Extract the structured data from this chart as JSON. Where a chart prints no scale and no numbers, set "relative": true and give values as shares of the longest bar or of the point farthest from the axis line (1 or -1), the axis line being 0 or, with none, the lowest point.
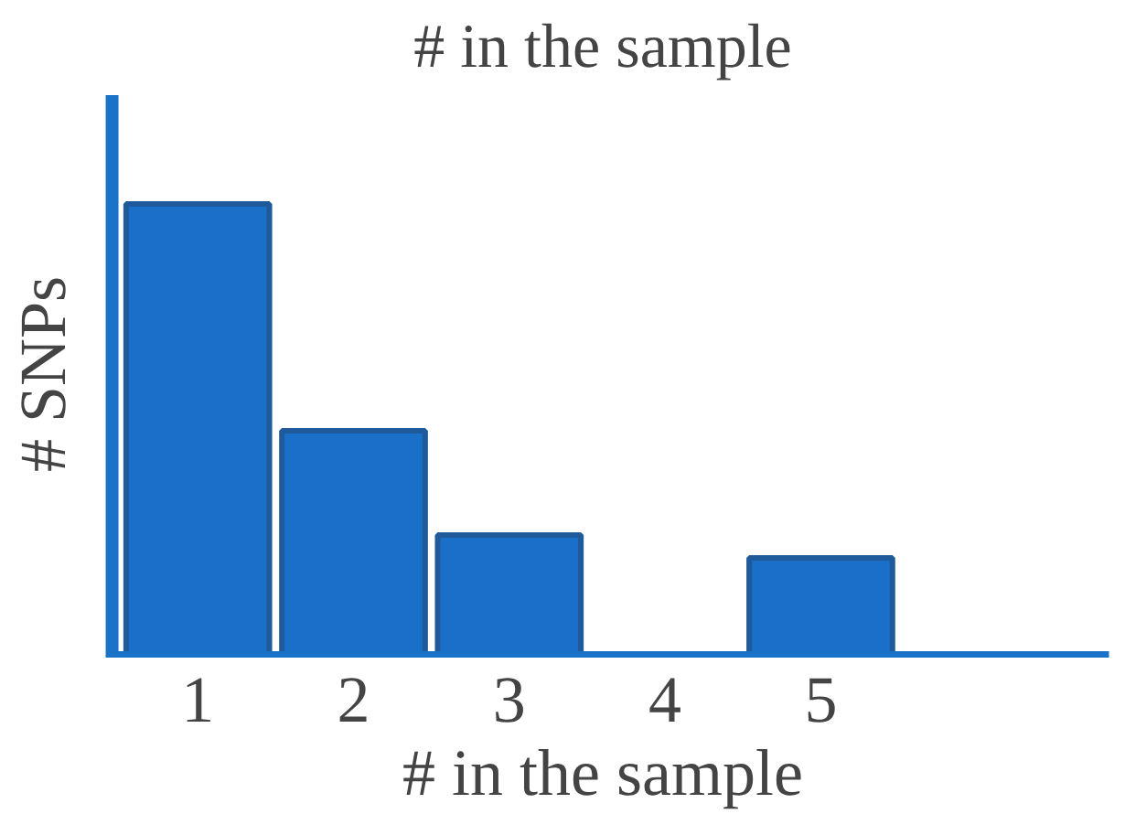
{
  "chart_data": {
    "type": "bar",
    "title": "# in the sample",
    "xlabel": "# in the sample",
    "ylabel": "# SNPs",
    "categories": [
      "1",
      "2",
      "3",
      "4",
      "5"
    ],
    "values": [
      1,
      0.5,
      0.27,
      0,
      0.22
    ],
    "color": "#1a6fc9",
    "relative": true,
    "grid": false
  }
}
